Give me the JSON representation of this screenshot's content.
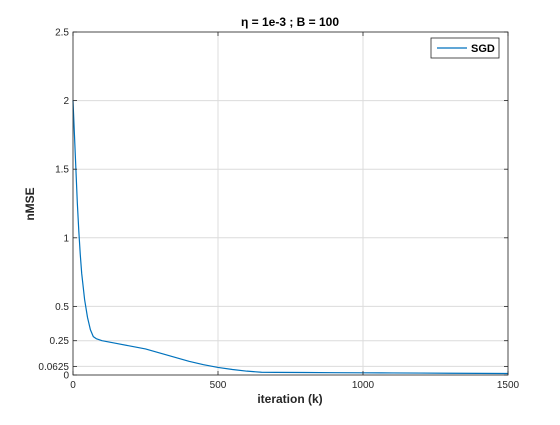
{
  "chart_data": {
    "type": "line",
    "title": "η = 1e-3 ; B = 100",
    "xlabel": "iteration (k)",
    "ylabel": "nMSE",
    "xlim": [
      0,
      1500
    ],
    "ylim": [
      0,
      2.5
    ],
    "x_ticks": [
      0,
      500,
      1000,
      1500
    ],
    "x_tick_labels": [
      "0",
      "500",
      "1000",
      "1500"
    ],
    "y_ticks": [
      0,
      0.0625,
      0.25,
      0.5,
      1,
      1.5,
      2,
      2.5
    ],
    "y_tick_labels": [
      "0",
      "0.0625",
      "0.25",
      "0.5",
      "1",
      "1.5",
      "2",
      "2.5"
    ],
    "grid": true,
    "legend_position": "top-right",
    "series": [
      {
        "name": "SGD",
        "color": "#0072BD",
        "x": [
          0,
          5,
          10,
          15,
          20,
          25,
          30,
          40,
          50,
          60,
          70,
          80,
          100,
          150,
          200,
          250,
          300,
          350,
          400,
          450,
          500,
          550,
          600,
          650,
          700,
          800,
          900,
          1000,
          1100,
          1200,
          1300,
          1400,
          1500
        ],
        "y": [
          2.0,
          1.75,
          1.5,
          1.25,
          1.05,
          0.88,
          0.74,
          0.55,
          0.42,
          0.33,
          0.28,
          0.265,
          0.25,
          0.23,
          0.21,
          0.19,
          0.16,
          0.13,
          0.1,
          0.075,
          0.055,
          0.04,
          0.028,
          0.02,
          0.019,
          0.018,
          0.017,
          0.016,
          0.015,
          0.014,
          0.013,
          0.012,
          0.011
        ]
      }
    ]
  }
}
